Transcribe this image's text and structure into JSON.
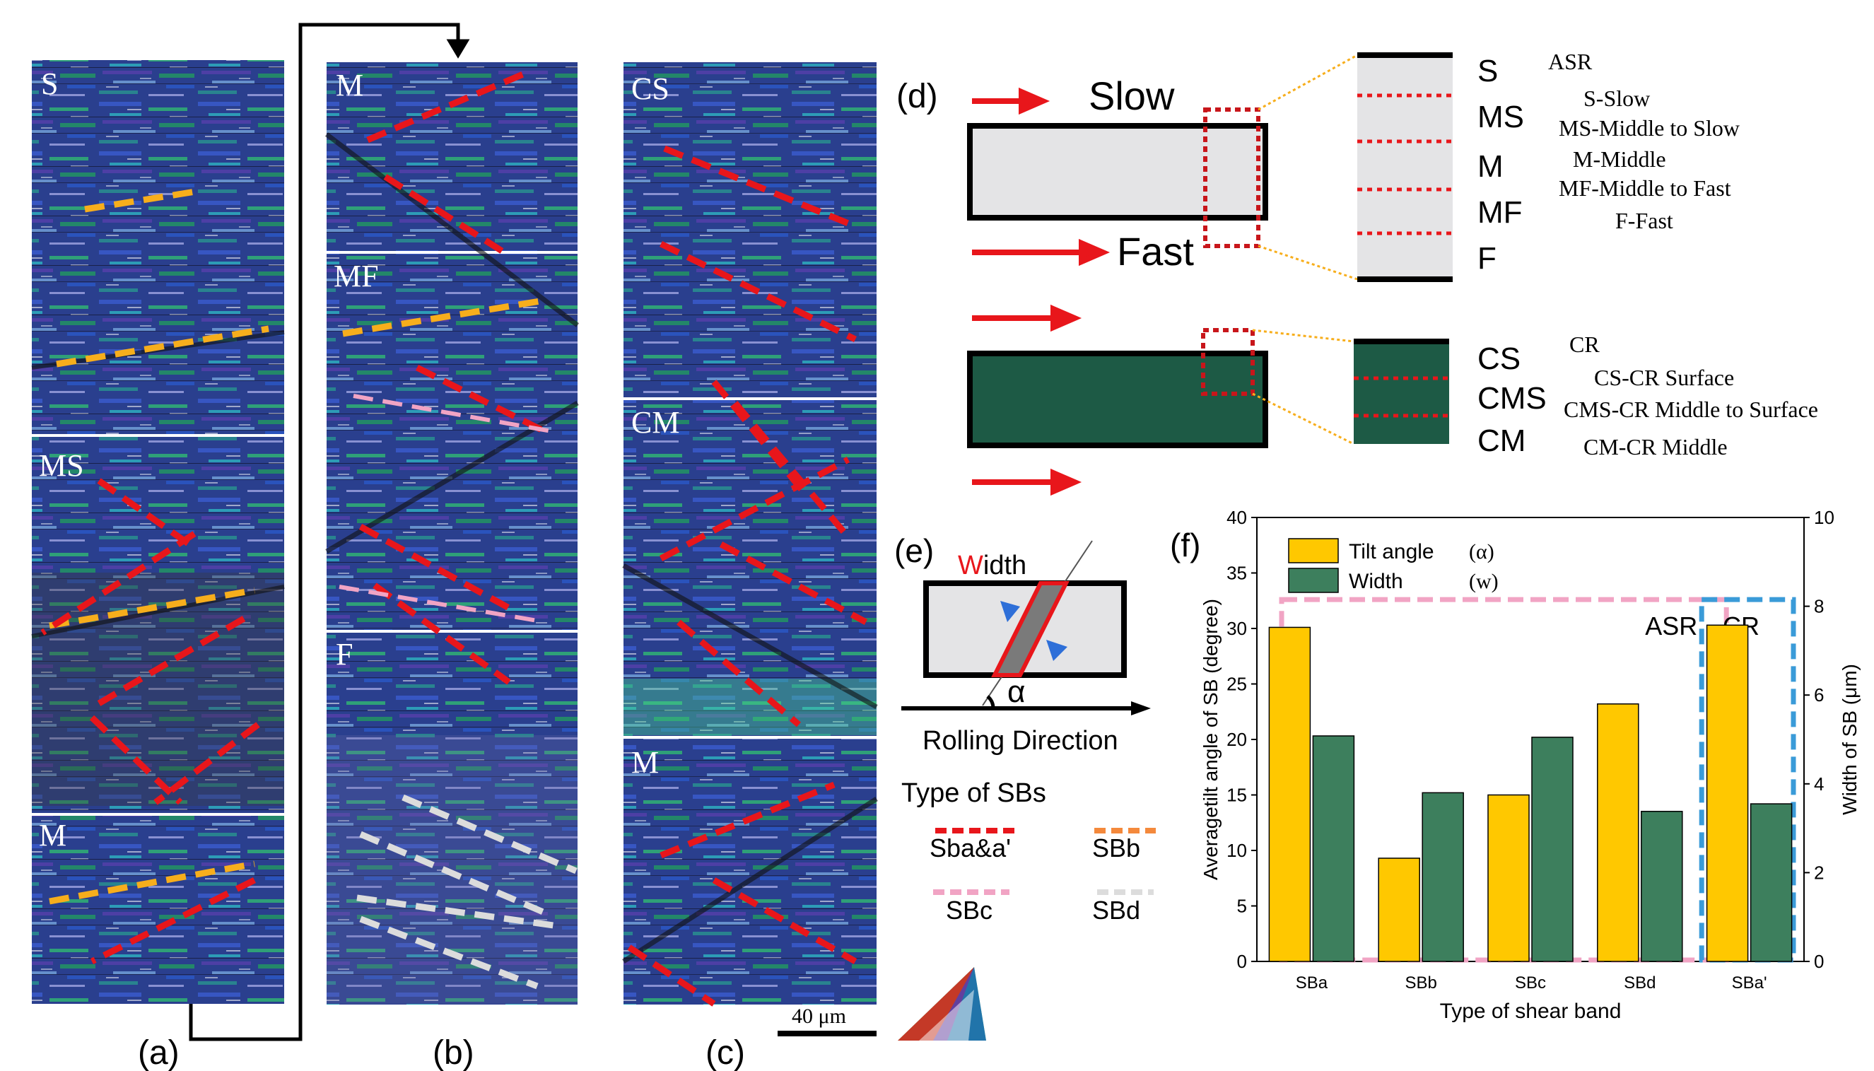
{
  "colors": {
    "asr_fill": "#e4e4e6",
    "cr_fill": "#1d5a45",
    "red": "#e8161b",
    "orange": "#f7ae1c",
    "pink": "#f1a4c4",
    "gray_dash": "#dcdcdc",
    "tilt_bar": "#ffc800",
    "width_bar": "#3d7f5d",
    "cr_box": "#3a9bd8"
  },
  "panel_labels": {
    "a": "(a)",
    "b": "(b)",
    "c": "(c)",
    "d": "(d)",
    "e": "(e)",
    "f": "(f)"
  },
  "micrographs": {
    "a": [
      "S",
      "MS",
      "M"
    ],
    "b": [
      "M",
      "MF",
      "F"
    ],
    "c": [
      "CS",
      "CM",
      "M"
    ],
    "scale_bar": "40 μm"
  },
  "panel_d": {
    "slow": "Slow",
    "fast": "Fast",
    "asr_levels": [
      "S",
      "MS",
      "M",
      "MF",
      "F"
    ],
    "asr_legend": {
      "title": "ASR",
      "items": [
        "S-Slow",
        "MS-Middle to Slow",
        "M-Middle",
        "MF-Middle to Fast",
        "F-Fast"
      ]
    },
    "cr_levels": [
      "CS",
      "CMS",
      "CM"
    ],
    "cr_legend": {
      "title": "CR",
      "items": [
        "CS-CR Surface",
        "CMS-CR Middle to Surface",
        "CM-CR Middle"
      ]
    }
  },
  "panel_e": {
    "width_first": "W",
    "width_rest": "idth",
    "alpha": "α",
    "rolling_direction": "Rolling Direction",
    "types_title": "Type of SBs",
    "types": [
      "Sba&a'",
      "SBb",
      "SBc",
      "SBd"
    ]
  },
  "chart_data": {
    "type": "bar",
    "categories": [
      "SBa",
      "SBb",
      "SBc",
      "SBd",
      "SBa'"
    ],
    "series": [
      {
        "name": "Tilt angle (α)",
        "axis": "left",
        "values": [
          30.1,
          9.3,
          15.0,
          23.2,
          30.3
        ]
      },
      {
        "name": "Width (w)",
        "axis": "right",
        "values": [
          5.08,
          3.8,
          5.05,
          3.38,
          3.55
        ]
      }
    ],
    "xlabel": "Type of shear band",
    "ylabel": "Averagetilt angle of SB (degree)",
    "ylabel_right": "Width of SB (μm)",
    "ylim": [
      0,
      40
    ],
    "ylim_right": [
      0,
      10
    ],
    "yticks": [
      "0",
      "5",
      "10",
      "15",
      "20",
      "25",
      "30",
      "35",
      "40"
    ],
    "yticks_right": [
      "0",
      "2",
      "4",
      "6",
      "8",
      "10"
    ],
    "legend": {
      "tilt_label": "Tilt angle",
      "tilt_symbol": "(α)",
      "width_label": "Width",
      "width_symbol": "(w)"
    },
    "group_labels": [
      "ASR",
      "CR"
    ]
  }
}
